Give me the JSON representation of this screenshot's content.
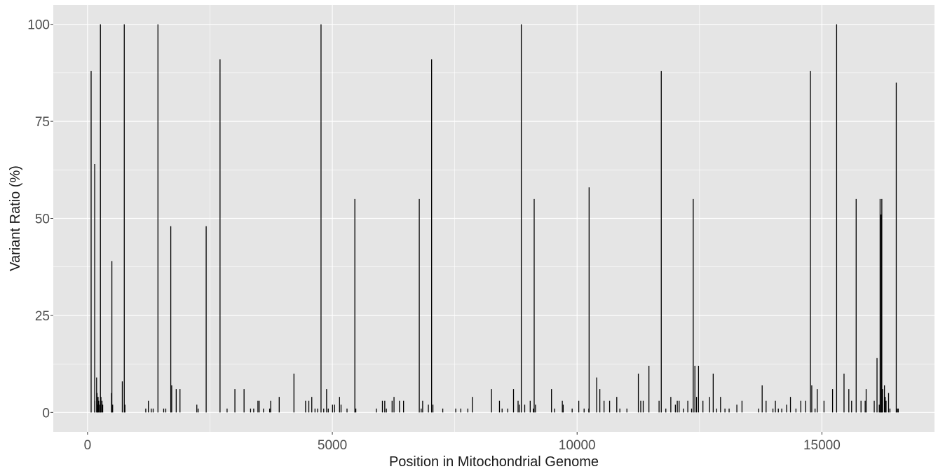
{
  "chart_data": {
    "type": "bar",
    "title": "",
    "xlabel": "Position in Mitochondrial Genome",
    "ylabel": "Variant Ratio (%)",
    "xlim": [
      -700,
      17300
    ],
    "ylim": [
      -5,
      105
    ],
    "x_ticks": [
      0,
      5000,
      10000,
      15000
    ],
    "y_ticks": [
      0,
      25,
      50,
      75,
      100
    ],
    "x_minor_ticks": [
      2500,
      7500,
      12500,
      17500
    ],
    "y_minor_ticks": [
      12.5,
      37.5,
      62.5,
      87.5
    ],
    "grid": true,
    "panel_background": "#e5e5e5",
    "grid_color": "#ffffff",
    "bar_color": "#000000",
    "points": [
      [
        73,
        88
      ],
      [
        146,
        64
      ],
      [
        150,
        3
      ],
      [
        185,
        9
      ],
      [
        195,
        5
      ],
      [
        204,
        2
      ],
      [
        215,
        4
      ],
      [
        228,
        3
      ],
      [
        240,
        2
      ],
      [
        263,
        100
      ],
      [
        274,
        4
      ],
      [
        295,
        3
      ],
      [
        310,
        2
      ],
      [
        489,
        5
      ],
      [
        497,
        39
      ],
      [
        513,
        2
      ],
      [
        710,
        8
      ],
      [
        750,
        100
      ],
      [
        764,
        2
      ],
      [
        1189,
        1
      ],
      [
        1243,
        3
      ],
      [
        1300,
        1
      ],
      [
        1340,
        1
      ],
      [
        1438,
        100
      ],
      [
        1555,
        1
      ],
      [
        1598,
        1
      ],
      [
        1700,
        48
      ],
      [
        1719,
        7
      ],
      [
        1811,
        6
      ],
      [
        1888,
        6
      ],
      [
        2232,
        2
      ],
      [
        2259,
        1
      ],
      [
        2423,
        48
      ],
      [
        2706,
        91
      ],
      [
        2850,
        1
      ],
      [
        3010,
        6
      ],
      [
        3197,
        6
      ],
      [
        3330,
        1
      ],
      [
        3394,
        1
      ],
      [
        3480,
        3
      ],
      [
        3505,
        3
      ],
      [
        3594,
        1
      ],
      [
        3720,
        1
      ],
      [
        3741,
        3
      ],
      [
        3915,
        4
      ],
      [
        4216,
        10
      ],
      [
        4454,
        3
      ],
      [
        4520,
        3
      ],
      [
        4580,
        4
      ],
      [
        4646,
        1
      ],
      [
        4700,
        1
      ],
      [
        4769,
        100
      ],
      [
        4824,
        1
      ],
      [
        4883,
        6
      ],
      [
        4917,
        1
      ],
      [
        5004,
        2
      ],
      [
        5046,
        2
      ],
      [
        5147,
        4
      ],
      [
        5178,
        2
      ],
      [
        5300,
        1
      ],
      [
        5460,
        55
      ],
      [
        5480,
        1
      ],
      [
        5899,
        1
      ],
      [
        6023,
        3
      ],
      [
        6071,
        3
      ],
      [
        6104,
        1
      ],
      [
        6221,
        3
      ],
      [
        6260,
        4
      ],
      [
        6371,
        3
      ],
      [
        6455,
        3
      ],
      [
        6776,
        55
      ],
      [
        6815,
        1
      ],
      [
        6845,
        3
      ],
      [
        6962,
        2
      ],
      [
        7028,
        91
      ],
      [
        7055,
        2
      ],
      [
        7256,
        1
      ],
      [
        7521,
        1
      ],
      [
        7624,
        1
      ],
      [
        7768,
        1
      ],
      [
        7861,
        4
      ],
      [
        8251,
        6
      ],
      [
        8414,
        3
      ],
      [
        8468,
        1
      ],
      [
        8584,
        1
      ],
      [
        8701,
        6
      ],
      [
        8794,
        3
      ],
      [
        8818,
        2
      ],
      [
        8860,
        100
      ],
      [
        8930,
        2
      ],
      [
        9042,
        3
      ],
      [
        9104,
        1
      ],
      [
        9123,
        55
      ],
      [
        9150,
        2
      ],
      [
        9477,
        6
      ],
      [
        9540,
        1
      ],
      [
        9698,
        3
      ],
      [
        9716,
        2
      ],
      [
        9899,
        1
      ],
      [
        10034,
        3
      ],
      [
        10143,
        1
      ],
      [
        10238,
        1
      ],
      [
        10245,
        58
      ],
      [
        10400,
        9
      ],
      [
        10464,
        6
      ],
      [
        10550,
        3
      ],
      [
        10664,
        3
      ],
      [
        10810,
        4
      ],
      [
        10873,
        1
      ],
      [
        11017,
        1
      ],
      [
        11251,
        10
      ],
      [
        11300,
        3
      ],
      [
        11350,
        3
      ],
      [
        11467,
        12
      ],
      [
        11674,
        3
      ],
      [
        11719,
        88
      ],
      [
        11812,
        1
      ],
      [
        11914,
        4
      ],
      [
        12007,
        2
      ],
      [
        12046,
        3
      ],
      [
        12084,
        3
      ],
      [
        12170,
        1
      ],
      [
        12261,
        3
      ],
      [
        12338,
        1
      ],
      [
        12372,
        55
      ],
      [
        12406,
        12
      ],
      [
        12440,
        4
      ],
      [
        12480,
        12
      ],
      [
        12570,
        3
      ],
      [
        12705,
        4
      ],
      [
        12780,
        10
      ],
      [
        12850,
        1
      ],
      [
        12930,
        4
      ],
      [
        13020,
        1
      ],
      [
        13105,
        1
      ],
      [
        13263,
        2
      ],
      [
        13368,
        3
      ],
      [
        13708,
        1
      ],
      [
        13780,
        7
      ],
      [
        13860,
        3
      ],
      [
        14000,
        1
      ],
      [
        14050,
        3
      ],
      [
        14110,
        1
      ],
      [
        14180,
        1
      ],
      [
        14280,
        2
      ],
      [
        14358,
        4
      ],
      [
        14470,
        1
      ],
      [
        14569,
        3
      ],
      [
        14668,
        3
      ],
      [
        14766,
        88
      ],
      [
        14793,
        7
      ],
      [
        14860,
        1
      ],
      [
        14905,
        6
      ],
      [
        15043,
        3
      ],
      [
        15218,
        6
      ],
      [
        15301,
        100
      ],
      [
        15452,
        10
      ],
      [
        15550,
        6
      ],
      [
        15607,
        3
      ],
      [
        15700,
        55
      ],
      [
        15799,
        3
      ],
      [
        15884,
        3
      ],
      [
        15904,
        6
      ],
      [
        16069,
        3
      ],
      [
        16126,
        14
      ],
      [
        16172,
        2
      ],
      [
        16189,
        55
      ],
      [
        16209,
        51
      ],
      [
        16224,
        55
      ],
      [
        16240,
        6
      ],
      [
        16278,
        7
      ],
      [
        16294,
        4
      ],
      [
        16311,
        3
      ],
      [
        16362,
        5
      ],
      [
        16390,
        1
      ],
      [
        16519,
        85
      ],
      [
        16540,
        1
      ],
      [
        16560,
        1
      ]
    ]
  }
}
